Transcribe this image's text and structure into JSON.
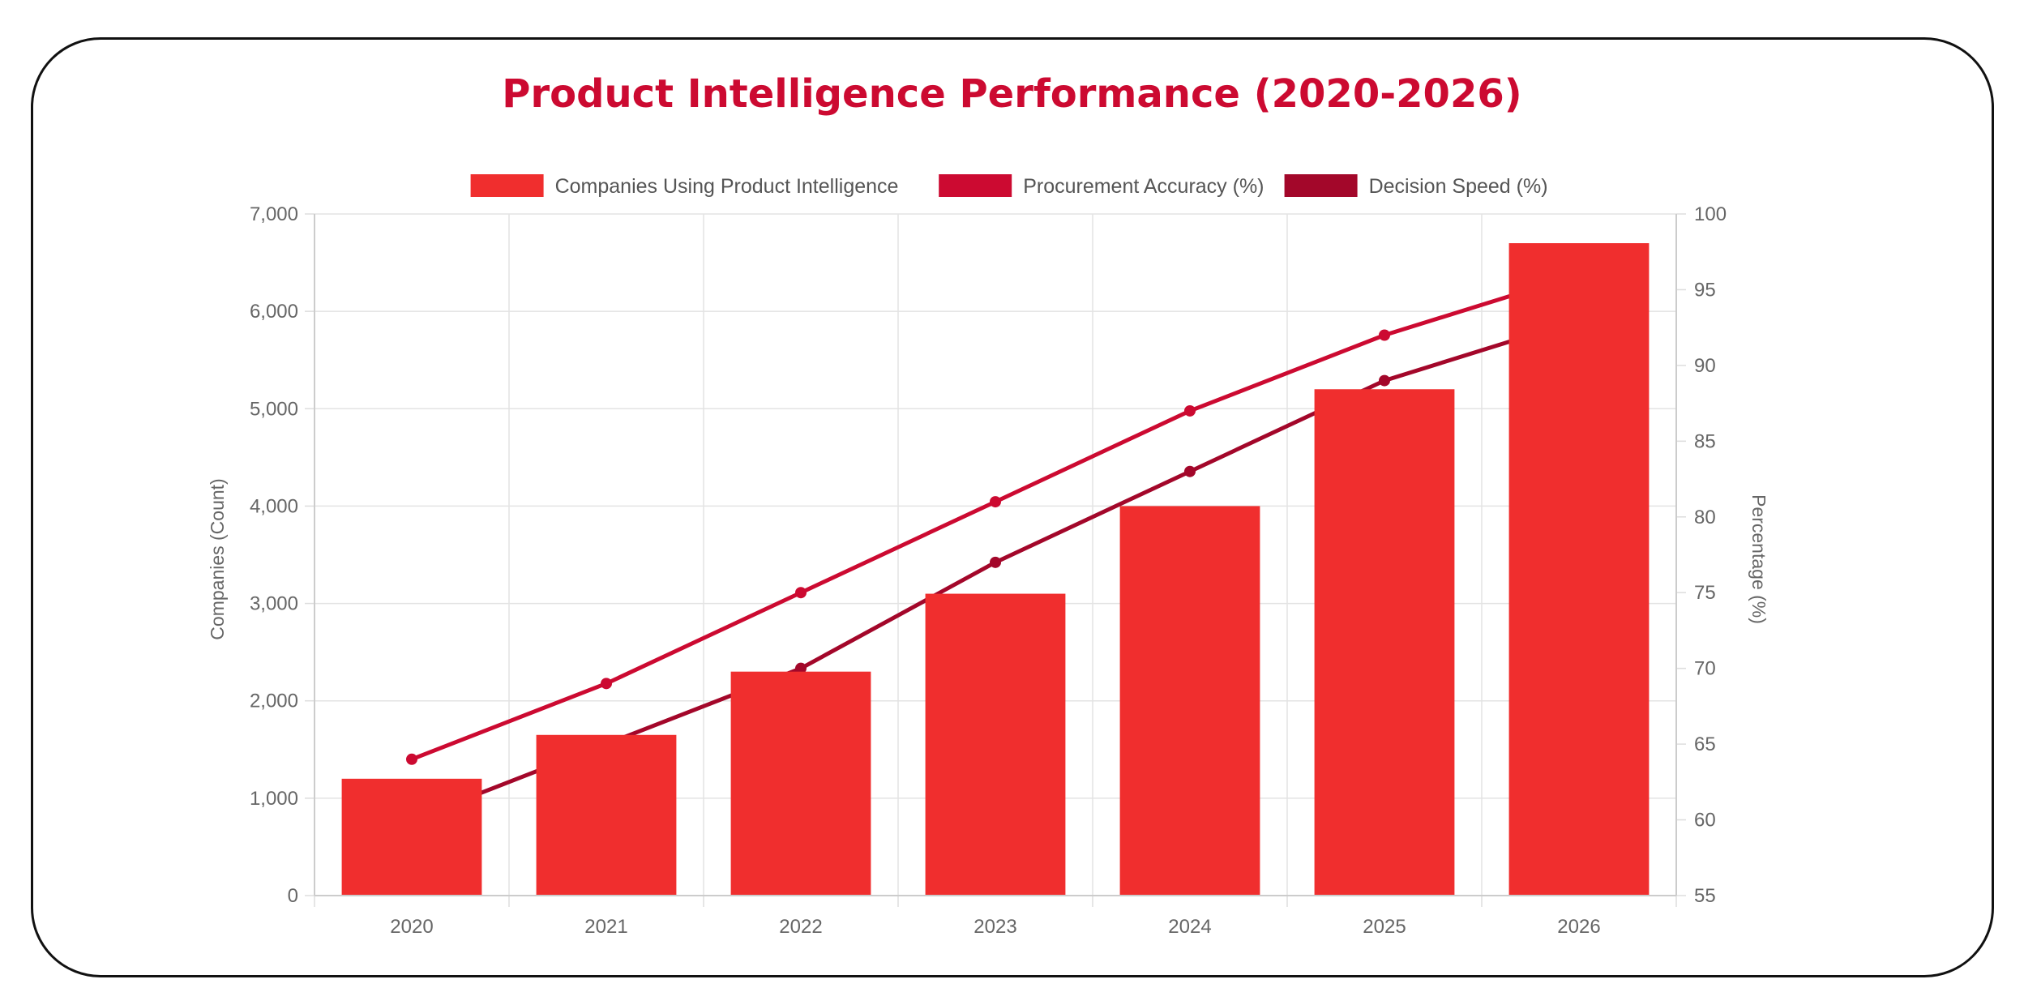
{
  "chart_data": {
    "type": "bar",
    "title": "Product Intelligence Performance (2020-2026)",
    "categories": [
      "2020",
      "2021",
      "2022",
      "2023",
      "2024",
      "2025",
      "2026"
    ],
    "series": [
      {
        "name": "Companies Using Product Intelligence",
        "type": "bar",
        "axis": "left",
        "color": "#f02e2e",
        "values": [
          1200,
          1650,
          2300,
          3100,
          4000,
          5200,
          6700
        ]
      },
      {
        "name": "Procurement Accuracy (%)",
        "type": "line",
        "axis": "right",
        "color": "#cc0a31",
        "values": [
          64,
          69,
          75,
          81,
          87,
          92,
          96
        ]
      },
      {
        "name": "Decision Speed (%)",
        "type": "line",
        "axis": "right",
        "color": "#a3072a",
        "values": [
          60,
          65,
          70,
          77,
          83,
          89,
          93
        ]
      }
    ],
    "y_left": {
      "label": "Companies (Count)",
      "min": 0,
      "max": 7000,
      "step": 1000,
      "ticks": [
        "0",
        "1,000",
        "2,000",
        "3,000",
        "4,000",
        "5,000",
        "6,000",
        "7,000"
      ]
    },
    "y_right": {
      "label": "Percentage (%)",
      "min": 55,
      "max": 100,
      "step": 5,
      "ticks": [
        "55",
        "60",
        "65",
        "70",
        "75",
        "80",
        "85",
        "90",
        "95",
        "100"
      ]
    },
    "grid": true,
    "legend": "top-center"
  }
}
